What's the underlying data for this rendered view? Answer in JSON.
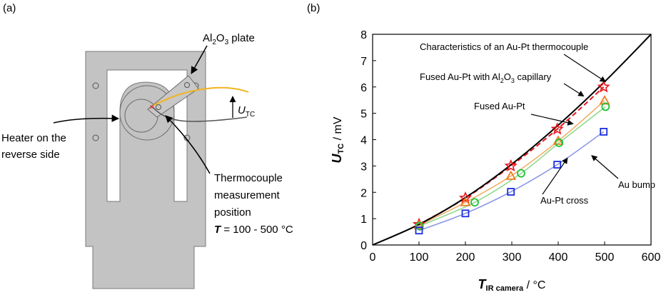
{
  "panels": {
    "a_label": "(a)",
    "b_label": "(b)"
  },
  "photo": {
    "plate_label": {
      "pre": "Al",
      "sub1": "2",
      "mid": "O",
      "sub2": "3",
      "post": " plate"
    },
    "utc_label": {
      "main": "U",
      "sub": "TC"
    },
    "heater_label": {
      "line1": "Heater on the",
      "line2": "reverse side"
    },
    "position_label": {
      "line1": "Thermocouple",
      "line2": "measurement",
      "line3": "position",
      "line4_var": "T",
      "line4_rest": " = 100 - 500 °C"
    },
    "colors": {
      "plate": "#c3c3c3",
      "plate_edge": "#7a7a7a",
      "wire_au": "#f2b320",
      "wire_pt": "#555555"
    }
  },
  "chart_data": {
    "type": "line",
    "xlim": [
      0,
      600
    ],
    "ylim": [
      0,
      8
    ],
    "xticks": [
      0,
      100,
      200,
      300,
      400,
      500,
      600
    ],
    "yticks": [
      0,
      1,
      2,
      3,
      4,
      5,
      6,
      7,
      8
    ],
    "xlabel": {
      "main": "T",
      "sub": "IR camera",
      "unit": " / °C"
    },
    "ylabel": {
      "main": "U",
      "sub": "TC",
      "unit": " / mV"
    },
    "grid": false,
    "series": [
      {
        "name": "Characteristics of an Au-Pt thermocouple",
        "style": "line",
        "color": "#000000",
        "x": [
          0,
          100,
          200,
          300,
          400,
          500,
          600
        ],
        "y": [
          0,
          0.78,
          1.8,
          3.07,
          4.55,
          6.2,
          8.0
        ]
      },
      {
        "name": "Fused Au-Pt with Al2O3 capillary",
        "style": "dashed",
        "marker": "star",
        "color": "#e8141a",
        "x": [
          100,
          200,
          298,
          398,
          498
        ],
        "y": [
          0.78,
          1.78,
          3.0,
          4.4,
          6.0
        ]
      },
      {
        "name": "Fused Au-Pt",
        "style": "line",
        "marker": "triangle",
        "color": "#f07c1e",
        "line_color": "#f2b06a",
        "x": [
          100,
          200,
          298,
          400,
          500
        ],
        "y": [
          0.75,
          1.62,
          2.62,
          3.95,
          5.48
        ]
      },
      {
        "name": "Au-Pt cross",
        "style": "line",
        "marker": "circle",
        "color": "#1fc23a",
        "line_color": "#8fd88f",
        "x": [
          101,
          220,
          320,
          402,
          502
        ],
        "y": [
          0.72,
          1.62,
          2.72,
          3.88,
          5.25
        ]
      },
      {
        "name": "Au bump",
        "style": "line",
        "marker": "square",
        "color": "#1a2ee0",
        "line_color": "#8e98e8",
        "x": [
          100,
          200,
          298,
          398,
          498
        ],
        "y": [
          0.55,
          1.2,
          2.02,
          3.05,
          4.3
        ]
      }
    ],
    "annotations": [
      {
        "text": "Characteristics of an Au-Pt thermocouple",
        "arrow_to": [
          502,
          6.2
        ]
      },
      {
        "text_pre": "Fused Au-Pt with Al",
        "text_sub1": "2",
        "text_mid": "O",
        "text_sub2": "3",
        "text_post": " capillary",
        "arrow_to": [
          455,
          5.65
        ]
      },
      {
        "text": "Fused Au-Pt",
        "arrow_to": [
          432,
          4.6
        ]
      },
      {
        "text": "Au-Pt cross",
        "arrow_to": [
          420,
          3.3
        ]
      },
      {
        "text": "Au bump",
        "arrow_to": [
          472,
          3.4
        ]
      }
    ]
  }
}
